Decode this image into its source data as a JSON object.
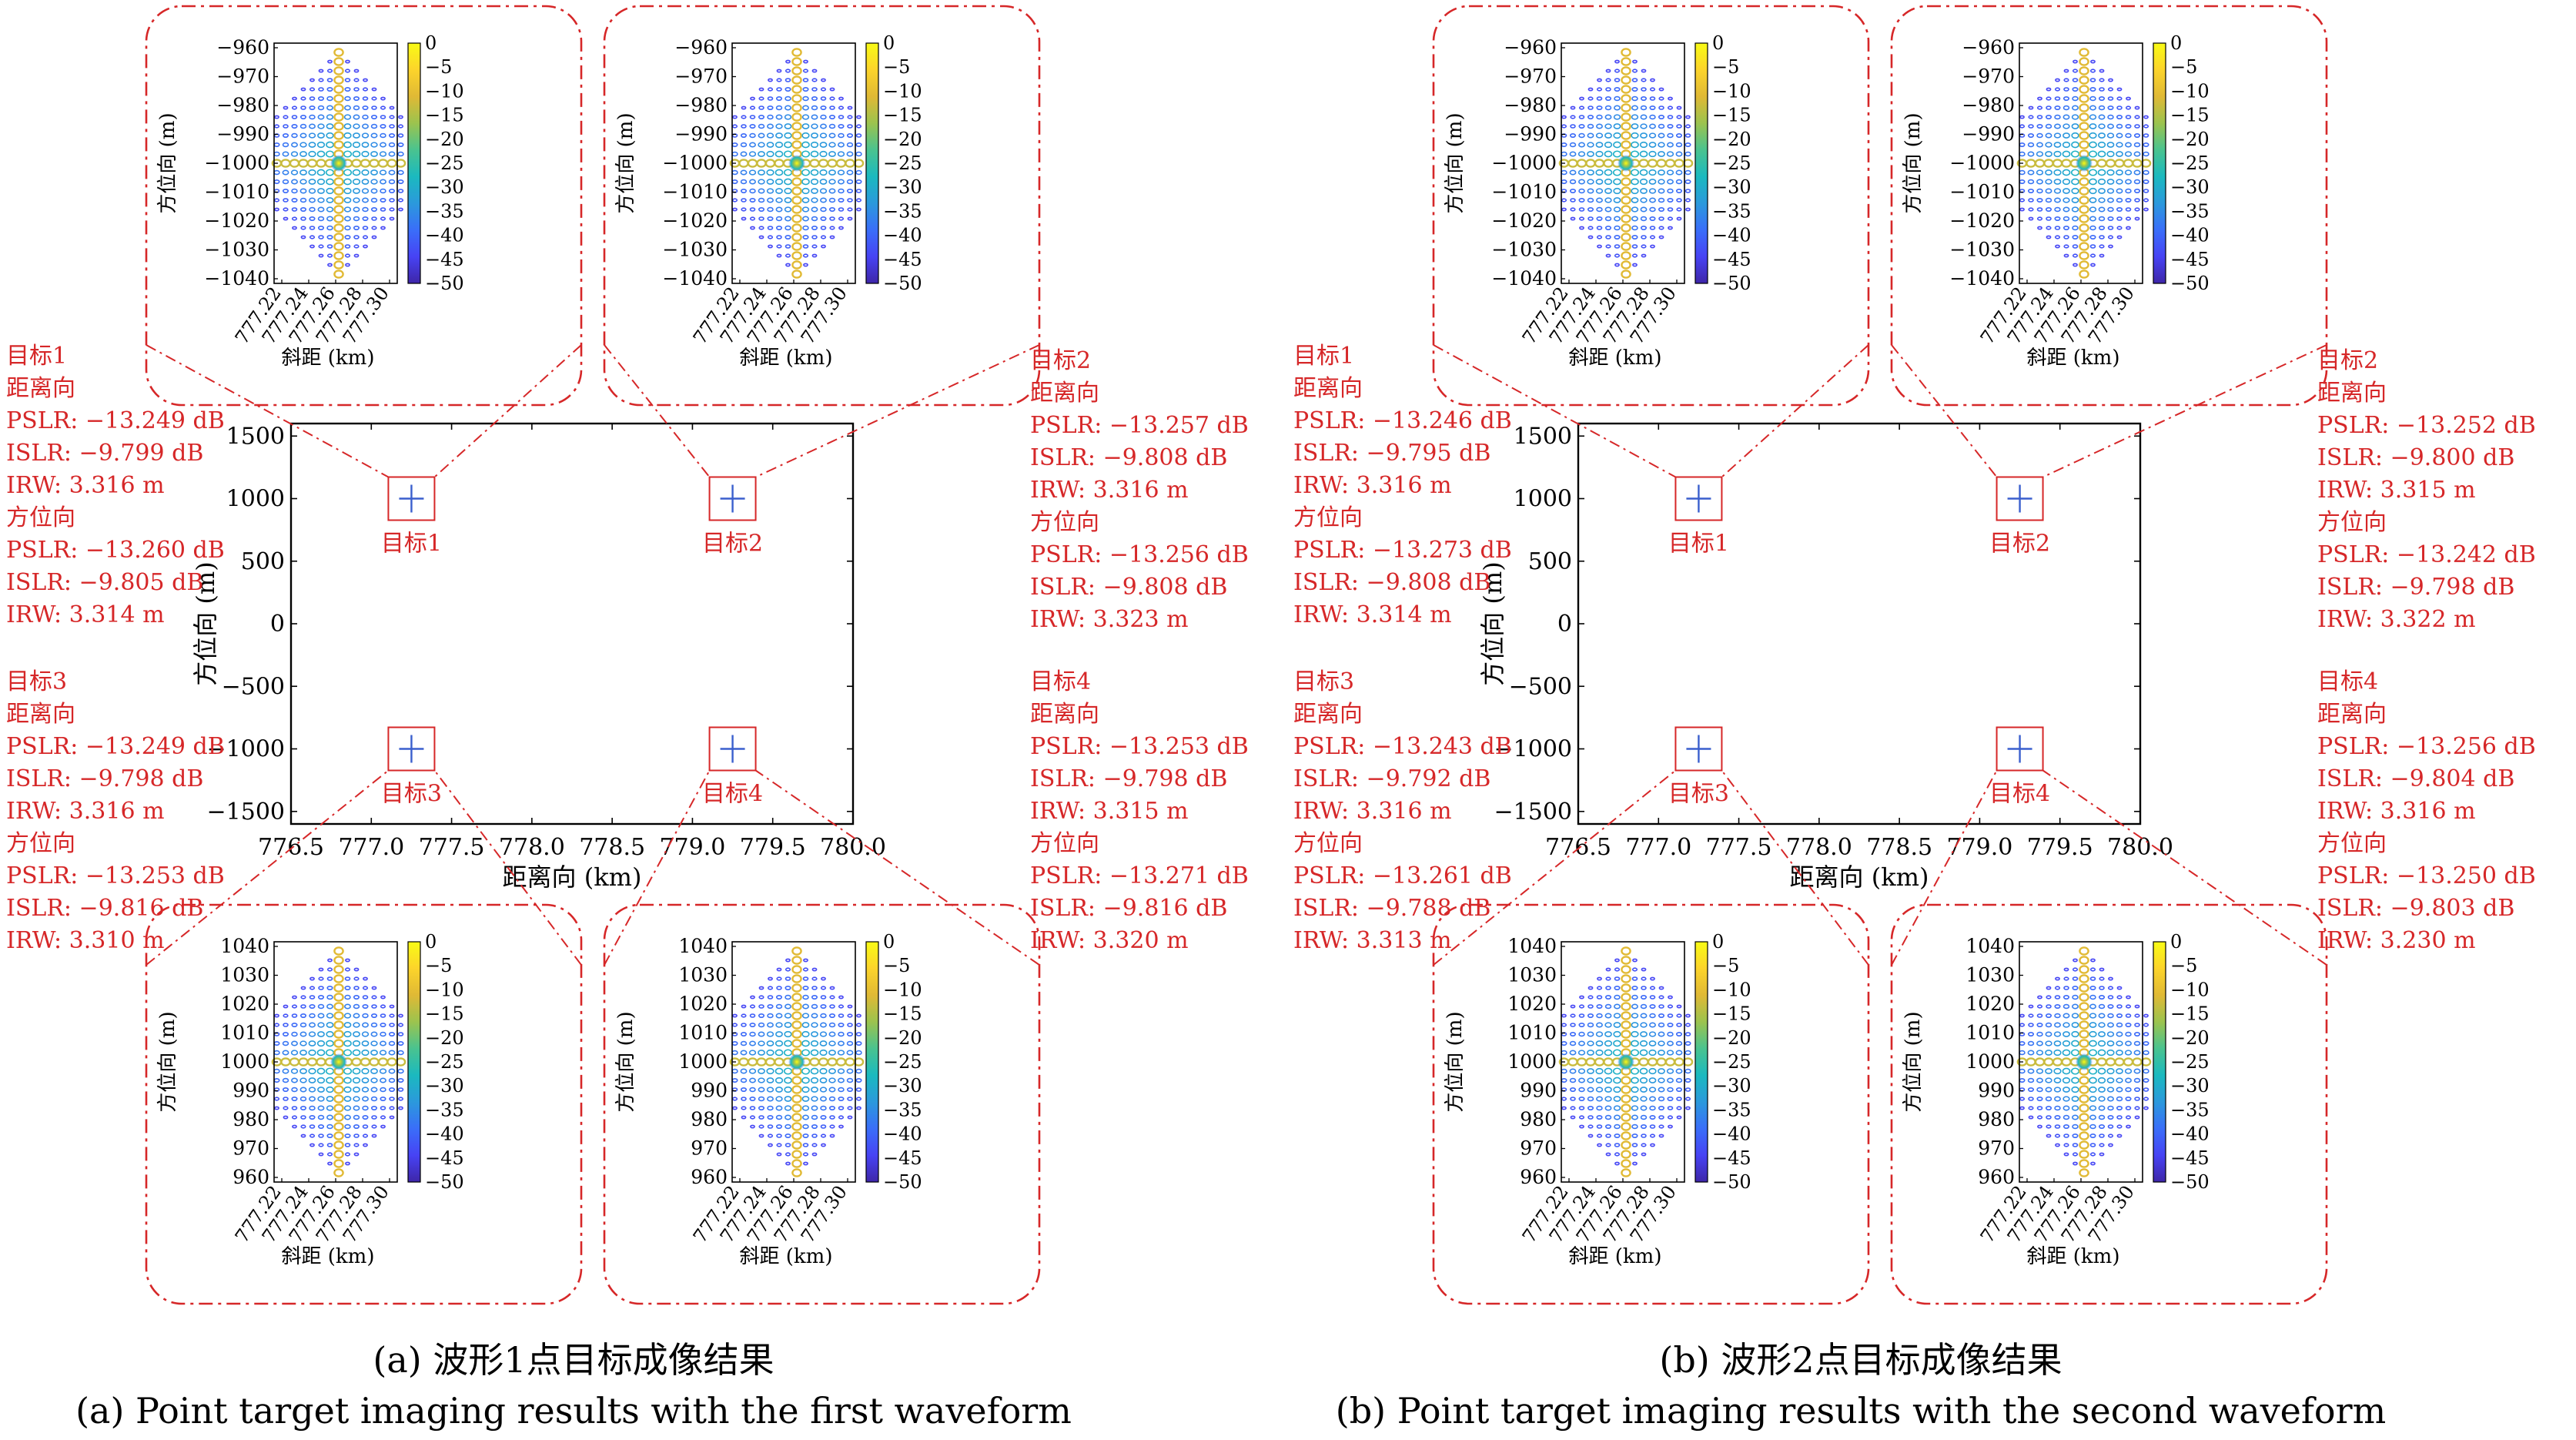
{
  "colors": {
    "annotation": "#d62728",
    "axis": "#000000",
    "target_marker": "#3a5fcd",
    "colormap": [
      "#3e26a8",
      "#4743f4",
      "#3a6ef9",
      "#2b99dc",
      "#1bb9bf",
      "#4ac38f",
      "#9cc34e",
      "#e0b935",
      "#fcd42b",
      "#f9fb15"
    ]
  },
  "panels": [
    {
      "id": "a",
      "caption_cn": "(a) 波形1点目标成像结果",
      "caption_en": "(a) Point target imaging results with the first waveform",
      "targets": [
        {
          "label": "目标1",
          "x": 777.25,
          "y": 1000,
          "info": [
            "目标1",
            "距离向",
            "PSLR: −13.249 dB",
            "ISLR: −9.799 dB",
            "IRW: 3.316 m",
            "方位向",
            "PSLR: −13.260 dB",
            "ISLR: −9.805 dB",
            "IRW: 3.314 m"
          ]
        },
        {
          "label": "目标2",
          "x": 779.25,
          "y": 1000,
          "info": [
            "目标2",
            "距离向",
            "PSLR: −13.257 dB",
            "ISLR: −9.808 dB",
            "IRW: 3.316 m",
            "方位向",
            "PSLR: −13.256 dB",
            "ISLR: −9.808 dB",
            "IRW: 3.323 m"
          ]
        },
        {
          "label": "目标3",
          "x": 777.25,
          "y": -1000,
          "info": [
            "目标3",
            "距离向",
            "PSLR: −13.249 dB",
            "ISLR: −9.798 dB",
            "IRW: 3.316 m",
            "方位向",
            "PSLR: −13.253 dB",
            "ISLR: −9.816 dB",
            "IRW: 3.310 m"
          ]
        },
        {
          "label": "目标4",
          "x": 779.25,
          "y": -1000,
          "info": [
            "目标4",
            "距离向",
            "PSLR: −13.253 dB",
            "ISLR: −9.798 dB",
            "IRW: 3.315 m",
            "方位向",
            "PSLR: −13.271 dB",
            "ISLR: −9.816 dB",
            "IRW: 3.320 m"
          ]
        }
      ]
    },
    {
      "id": "b",
      "caption_cn": "(b) 波形2点目标成像结果",
      "caption_en": "(b) Point target imaging results with the second waveform",
      "targets": [
        {
          "label": "目标1",
          "x": 777.25,
          "y": 1000,
          "info": [
            "目标1",
            "距离向",
            "PSLR: −13.246 dB",
            "ISLR: −9.795 dB",
            "IRW: 3.316 m",
            "方位向",
            "PSLR: −13.273 dB",
            "ISLR: −9.808 dB",
            "IRW: 3.314 m"
          ]
        },
        {
          "label": "目标2",
          "x": 779.25,
          "y": 1000,
          "info": [
            "目标2",
            "距离向",
            "PSLR: −13.252 dB",
            "ISLR: −9.800 dB",
            "IRW: 3.315 m",
            "方位向",
            "PSLR: −13.242 dB",
            "ISLR: −9.798 dB",
            "IRW: 3.322 m"
          ]
        },
        {
          "label": "目标3",
          "x": 777.25,
          "y": -1000,
          "info": [
            "目标3",
            "距离向",
            "PSLR: −13.243 dB",
            "ISLR: −9.792 dB",
            "IRW: 3.316 m",
            "方位向",
            "PSLR: −13.261 dB",
            "ISLR: −9.788 dB",
            "IRW: 3.313 m"
          ]
        },
        {
          "label": "目标4",
          "x": 779.25,
          "y": -1000,
          "info": [
            "目标4",
            "距离向",
            "PSLR: −13.256 dB",
            "ISLR: −9.804 dB",
            "IRW: 3.316 m",
            "方位向",
            "PSLR: −13.250 dB",
            "ISLR: −9.803 dB",
            "IRW: 3.230 m"
          ]
        }
      ]
    }
  ],
  "chart_data": [
    {
      "type": "scatter",
      "panel": "a",
      "xlabel": "距离向 (km)",
      "ylabel": "方位向 (m)",
      "xlim": [
        776.5,
        780.0
      ],
      "ylim": [
        -1600,
        1600
      ],
      "xticks": [
        "776.5",
        "777.0",
        "777.5",
        "778.0",
        "778.5",
        "779.0",
        "779.5",
        "780.0"
      ],
      "yticks": [
        "1500",
        "1000",
        "500",
        "0",
        "−500",
        "−1000",
        "−1500"
      ],
      "ytick_values": [
        1500,
        1000,
        500,
        0,
        -500,
        -1000,
        -1500
      ],
      "xtick_values": [
        776.5,
        777.0,
        777.5,
        778.0,
        778.5,
        779.0,
        779.5,
        780.0
      ],
      "points": [
        {
          "x": 777.25,
          "y": 1000,
          "label": "目标1"
        },
        {
          "x": 779.25,
          "y": 1000,
          "label": "目标2"
        },
        {
          "x": 777.25,
          "y": -1000,
          "label": "目标3"
        },
        {
          "x": 779.25,
          "y": -1000,
          "label": "目标4"
        }
      ],
      "insets": {
        "type": "heatmap",
        "xlabel": "斜距 (km)",
        "ylabel": "方位向 (m)",
        "xticks": [
          "777.22",
          "777.24",
          "777.26",
          "777.28",
          "777.30"
        ],
        "yticks_top": [
          "−960",
          "−970",
          "−980",
          "−990",
          "−1000",
          "−1010",
          "−1020",
          "−1030",
          "−1040"
        ],
        "yticks_bottom": [
          "1040",
          "1030",
          "1020",
          "1010",
          "1000",
          "990",
          "980",
          "970",
          "960"
        ],
        "colorbar_ticks": [
          "0",
          "−5",
          "−10",
          "−15",
          "−20",
          "−25",
          "−30",
          "−35",
          "−40",
          "−45",
          "−50"
        ],
        "colorbar_range": [
          -50,
          0
        ],
        "peak": {
          "x": 777.255,
          "y_abs": 1000
        }
      }
    },
    {
      "type": "scatter",
      "panel": "b",
      "xlabel": "距离向 (km)",
      "ylabel": "方位向 (m)",
      "xlim": [
        776.5,
        780.0
      ],
      "ylim": [
        -1600,
        1600
      ],
      "xticks": [
        "776.5",
        "777.0",
        "777.5",
        "778.0",
        "778.5",
        "779.0",
        "779.5",
        "780.0"
      ],
      "yticks": [
        "1500",
        "1000",
        "500",
        "0",
        "−500",
        "−1000",
        "−1500"
      ],
      "ytick_values": [
        1500,
        1000,
        500,
        0,
        -500,
        -1000,
        -1500
      ],
      "xtick_values": [
        776.5,
        777.0,
        777.5,
        778.0,
        778.5,
        779.0,
        779.5,
        780.0
      ],
      "points": [
        {
          "x": 777.25,
          "y": 1000,
          "label": "目标1"
        },
        {
          "x": 779.25,
          "y": 1000,
          "label": "目标2"
        },
        {
          "x": 777.25,
          "y": -1000,
          "label": "目标3"
        },
        {
          "x": 779.25,
          "y": -1000,
          "label": "目标4"
        }
      ],
      "insets": {
        "type": "heatmap",
        "xlabel": "斜距 (km)",
        "ylabel": "方位向 (m)",
        "xticks": [
          "777.22",
          "777.24",
          "777.26",
          "777.28",
          "777.30"
        ],
        "yticks_top": [
          "−960",
          "−970",
          "−980",
          "−990",
          "−1000",
          "−1010",
          "−1020",
          "−1030",
          "−1040"
        ],
        "yticks_bottom": [
          "1040",
          "1030",
          "1020",
          "1010",
          "1000",
          "990",
          "980",
          "970",
          "960"
        ],
        "colorbar_ticks": [
          "0",
          "−5",
          "−10",
          "−15",
          "−20",
          "−25",
          "−30",
          "−35",
          "−40",
          "−45",
          "−50"
        ],
        "colorbar_range": [
          -50,
          0
        ],
        "peak": {
          "x": 777.255,
          "y_abs": 1000
        }
      }
    }
  ]
}
